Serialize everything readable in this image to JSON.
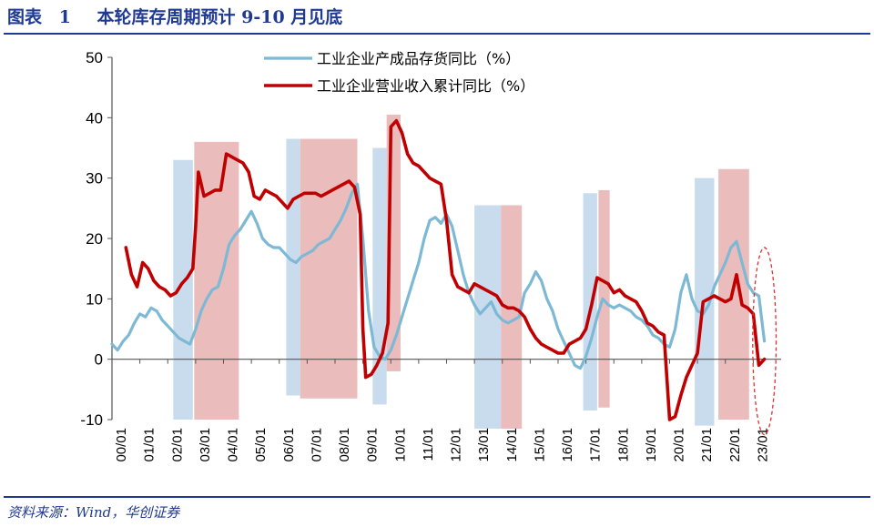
{
  "figure": {
    "label": "图表",
    "number": "1",
    "title": "本轮库存周期预计 9-10 月见底",
    "source": "资料来源：Wind，华创证券"
  },
  "chart_data": {
    "type": "line",
    "xlabel": "",
    "ylabel": "",
    "ylim": [
      -10,
      50
    ],
    "yticks": [
      -10,
      0,
      10,
      20,
      30,
      40,
      50
    ],
    "xlim": [
      2000.0,
      2024.0
    ],
    "xticks": [
      "00/01",
      "01/01",
      "02/01",
      "03/01",
      "04/01",
      "05/01",
      "06/01",
      "07/01",
      "08/01",
      "09/01",
      "10/01",
      "11/01",
      "12/01",
      "13/01",
      "14/01",
      "15/01",
      "16/01",
      "17/01",
      "18/01",
      "19/01",
      "20/01",
      "21/01",
      "22/01",
      "23/01"
    ],
    "colors": {
      "inventory": "#7db9d4",
      "revenue": "#c00000",
      "band_blue": "#c8dcee",
      "band_red": "#ebbcbc",
      "ellipse": "#e03030"
    },
    "series": [
      {
        "name": "工业企业产成品存货同比（%）",
        "color": "#7db9d4",
        "points": [
          [
            2000.0,
            2.5
          ],
          [
            2000.2,
            1.5
          ],
          [
            2000.4,
            3.0
          ],
          [
            2000.6,
            4.0
          ],
          [
            2000.8,
            6.0
          ],
          [
            2001.0,
            7.5
          ],
          [
            2001.2,
            7.0
          ],
          [
            2001.4,
            8.5
          ],
          [
            2001.6,
            8.0
          ],
          [
            2001.8,
            6.5
          ],
          [
            2002.0,
            5.5
          ],
          [
            2002.2,
            4.5
          ],
          [
            2002.4,
            3.5
          ],
          [
            2002.6,
            3.0
          ],
          [
            2002.8,
            2.5
          ],
          [
            2003.0,
            5.0
          ],
          [
            2003.2,
            8.0
          ],
          [
            2003.4,
            10.0
          ],
          [
            2003.6,
            11.5
          ],
          [
            2003.8,
            12.0
          ],
          [
            2004.0,
            15.0
          ],
          [
            2004.2,
            19.0
          ],
          [
            2004.4,
            20.5
          ],
          [
            2004.6,
            21.5
          ],
          [
            2004.8,
            23.0
          ],
          [
            2005.0,
            24.5
          ],
          [
            2005.2,
            22.5
          ],
          [
            2005.4,
            20.0
          ],
          [
            2005.6,
            19.0
          ],
          [
            2005.8,
            18.5
          ],
          [
            2006.0,
            18.5
          ],
          [
            2006.2,
            17.5
          ],
          [
            2006.4,
            16.5
          ],
          [
            2006.6,
            16.0
          ],
          [
            2006.8,
            17.0
          ],
          [
            2007.0,
            17.5
          ],
          [
            2007.2,
            18.0
          ],
          [
            2007.4,
            19.0
          ],
          [
            2007.6,
            19.5
          ],
          [
            2007.8,
            20.0
          ],
          [
            2008.0,
            21.5
          ],
          [
            2008.2,
            23.0
          ],
          [
            2008.4,
            25.0
          ],
          [
            2008.6,
            27.5
          ],
          [
            2008.8,
            29.0
          ],
          [
            2009.0,
            20.0
          ],
          [
            2009.2,
            8.0
          ],
          [
            2009.4,
            2.0
          ],
          [
            2009.6,
            0.5
          ],
          [
            2009.8,
            0.0
          ],
          [
            2010.0,
            1.5
          ],
          [
            2010.2,
            4.0
          ],
          [
            2010.4,
            7.0
          ],
          [
            2010.6,
            10.0
          ],
          [
            2010.8,
            13.0
          ],
          [
            2011.0,
            16.0
          ],
          [
            2011.2,
            20.0
          ],
          [
            2011.4,
            23.0
          ],
          [
            2011.6,
            23.5
          ],
          [
            2011.8,
            22.5
          ],
          [
            2012.0,
            24.0
          ],
          [
            2012.2,
            22.0
          ],
          [
            2012.4,
            18.0
          ],
          [
            2012.6,
            14.0
          ],
          [
            2012.8,
            11.0
          ],
          [
            2013.0,
            9.0
          ],
          [
            2013.2,
            7.5
          ],
          [
            2013.4,
            8.5
          ],
          [
            2013.6,
            9.5
          ],
          [
            2013.8,
            7.5
          ],
          [
            2014.0,
            6.5
          ],
          [
            2014.2,
            6.0
          ],
          [
            2014.4,
            6.5
          ],
          [
            2014.6,
            7.0
          ],
          [
            2014.8,
            11.0
          ],
          [
            2015.0,
            12.5
          ],
          [
            2015.2,
            14.5
          ],
          [
            2015.4,
            13.0
          ],
          [
            2015.6,
            10.0
          ],
          [
            2015.8,
            8.0
          ],
          [
            2016.0,
            5.0
          ],
          [
            2016.2,
            3.0
          ],
          [
            2016.4,
            1.0
          ],
          [
            2016.6,
            -1.0
          ],
          [
            2016.8,
            -1.5
          ],
          [
            2017.0,
            0.5
          ],
          [
            2017.2,
            3.5
          ],
          [
            2017.4,
            7.0
          ],
          [
            2017.6,
            10.0
          ],
          [
            2017.8,
            9.0
          ],
          [
            2018.0,
            8.5
          ],
          [
            2018.2,
            9.0
          ],
          [
            2018.4,
            8.5
          ],
          [
            2018.6,
            8.0
          ],
          [
            2018.8,
            7.0
          ],
          [
            2019.0,
            6.5
          ],
          [
            2019.2,
            5.5
          ],
          [
            2019.4,
            4.0
          ],
          [
            2019.6,
            3.5
          ],
          [
            2019.8,
            2.5
          ],
          [
            2020.0,
            2.0
          ],
          [
            2020.2,
            5.0
          ],
          [
            2020.4,
            11.0
          ],
          [
            2020.6,
            14.0
          ],
          [
            2020.8,
            10.0
          ],
          [
            2021.0,
            8.0
          ],
          [
            2021.2,
            7.5
          ],
          [
            2021.4,
            9.0
          ],
          [
            2021.6,
            12.0
          ],
          [
            2021.8,
            14.0
          ],
          [
            2022.0,
            16.0
          ],
          [
            2022.2,
            18.5
          ],
          [
            2022.4,
            19.5
          ],
          [
            2022.6,
            16.0
          ],
          [
            2022.8,
            12.5
          ],
          [
            2023.0,
            11.0
          ],
          [
            2023.2,
            10.5
          ],
          [
            2023.4,
            3.0
          ]
        ]
      },
      {
        "name": "工业企业营业收入累计同比（%）",
        "color": "#c00000",
        "points": [
          [
            2000.5,
            18.5
          ],
          [
            2000.7,
            14.0
          ],
          [
            2000.9,
            12.0
          ],
          [
            2001.1,
            16.0
          ],
          [
            2001.3,
            15.0
          ],
          [
            2001.5,
            13.0
          ],
          [
            2001.7,
            12.0
          ],
          [
            2001.9,
            11.5
          ],
          [
            2002.1,
            10.5
          ],
          [
            2002.3,
            11.0
          ],
          [
            2002.5,
            12.5
          ],
          [
            2002.7,
            13.5
          ],
          [
            2002.9,
            15.0
          ],
          [
            2003.0,
            22.0
          ],
          [
            2003.1,
            31.0
          ],
          [
            2003.3,
            27.0
          ],
          [
            2003.5,
            27.5
          ],
          [
            2003.7,
            28.0
          ],
          [
            2003.9,
            28.0
          ],
          [
            2004.1,
            34.0
          ],
          [
            2004.3,
            33.5
          ],
          [
            2004.5,
            33.0
          ],
          [
            2004.7,
            32.5
          ],
          [
            2004.9,
            31.0
          ],
          [
            2005.1,
            27.0
          ],
          [
            2005.3,
            26.5
          ],
          [
            2005.5,
            28.0
          ],
          [
            2005.7,
            27.5
          ],
          [
            2005.9,
            27.0
          ],
          [
            2006.1,
            26.0
          ],
          [
            2006.3,
            25.0
          ],
          [
            2006.5,
            26.5
          ],
          [
            2006.7,
            27.0
          ],
          [
            2006.9,
            27.5
          ],
          [
            2007.1,
            27.5
          ],
          [
            2007.3,
            27.5
          ],
          [
            2007.5,
            27.0
          ],
          [
            2007.7,
            27.5
          ],
          [
            2007.9,
            28.0
          ],
          [
            2008.1,
            28.5
          ],
          [
            2008.3,
            29.0
          ],
          [
            2008.5,
            29.5
          ],
          [
            2008.7,
            28.5
          ],
          [
            2008.9,
            24.0
          ],
          [
            2009.0,
            5.0
          ],
          [
            2009.1,
            -3.0
          ],
          [
            2009.3,
            -2.5
          ],
          [
            2009.5,
            -1.0
          ],
          [
            2009.7,
            1.0
          ],
          [
            2009.9,
            6.0
          ],
          [
            2010.0,
            38.5
          ],
          [
            2010.2,
            39.5
          ],
          [
            2010.4,
            37.5
          ],
          [
            2010.6,
            34.0
          ],
          [
            2010.8,
            32.5
          ],
          [
            2011.0,
            32.0
          ],
          [
            2011.2,
            31.0
          ],
          [
            2011.4,
            30.0
          ],
          [
            2011.6,
            29.5
          ],
          [
            2011.8,
            29.0
          ],
          [
            2012.0,
            23.0
          ],
          [
            2012.2,
            14.0
          ],
          [
            2012.4,
            12.0
          ],
          [
            2012.6,
            11.5
          ],
          [
            2012.8,
            11.0
          ],
          [
            2013.0,
            12.5
          ],
          [
            2013.2,
            12.0
          ],
          [
            2013.4,
            11.5
          ],
          [
            2013.6,
            11.0
          ],
          [
            2013.8,
            10.5
          ],
          [
            2014.0,
            9.0
          ],
          [
            2014.2,
            8.5
          ],
          [
            2014.4,
            8.5
          ],
          [
            2014.6,
            8.0
          ],
          [
            2014.8,
            7.0
          ],
          [
            2015.0,
            5.0
          ],
          [
            2015.2,
            3.5
          ],
          [
            2015.4,
            2.5
          ],
          [
            2015.6,
            2.0
          ],
          [
            2015.8,
            1.5
          ],
          [
            2016.0,
            1.0
          ],
          [
            2016.2,
            1.0
          ],
          [
            2016.4,
            2.5
          ],
          [
            2016.6,
            3.0
          ],
          [
            2016.8,
            3.5
          ],
          [
            2017.0,
            5.0
          ],
          [
            2017.2,
            9.0
          ],
          [
            2017.4,
            13.5
          ],
          [
            2017.6,
            13.0
          ],
          [
            2017.8,
            12.5
          ],
          [
            2018.0,
            11.0
          ],
          [
            2018.2,
            11.5
          ],
          [
            2018.4,
            10.5
          ],
          [
            2018.6,
            10.0
          ],
          [
            2018.8,
            9.5
          ],
          [
            2019.0,
            8.0
          ],
          [
            2019.2,
            6.0
          ],
          [
            2019.4,
            5.5
          ],
          [
            2019.6,
            4.5
          ],
          [
            2019.8,
            4.0
          ],
          [
            2020.0,
            -10.0
          ],
          [
            2020.2,
            -9.5
          ],
          [
            2020.4,
            -6.0
          ],
          [
            2020.6,
            -3.0
          ],
          [
            2020.8,
            -1.0
          ],
          [
            2021.0,
            1.0
          ],
          [
            2021.2,
            9.5
          ],
          [
            2021.4,
            10.0
          ],
          [
            2021.6,
            10.5
          ],
          [
            2021.8,
            10.0
          ],
          [
            2022.0,
            9.5
          ],
          [
            2022.2,
            10.0
          ],
          [
            2022.4,
            14.0
          ],
          [
            2022.6,
            9.0
          ],
          [
            2022.8,
            8.5
          ],
          [
            2023.0,
            7.5
          ],
          [
            2023.2,
            -1.0
          ],
          [
            2023.4,
            0.0
          ]
        ]
      }
    ],
    "bands": [
      {
        "series": "inventory",
        "x0": 2002.2,
        "x1": 2002.9,
        "y0": -10,
        "y1": 33
      },
      {
        "series": "revenue",
        "x0": 2002.95,
        "x1": 2004.55,
        "y0": -10,
        "y1": 36
      },
      {
        "series": "inventory",
        "x0": 2006.25,
        "x1": 2006.75,
        "y0": -6,
        "y1": 36.5
      },
      {
        "series": "revenue",
        "x0": 2006.75,
        "x1": 2008.8,
        "y0": -6.5,
        "y1": 36.5
      },
      {
        "series": "inventory",
        "x0": 2009.35,
        "x1": 2009.85,
        "y0": -7.5,
        "y1": 35
      },
      {
        "series": "revenue",
        "x0": 2009.85,
        "x1": 2010.35,
        "y0": -2,
        "y1": 40.5
      },
      {
        "series": "inventory",
        "x0": 2013.0,
        "x1": 2013.95,
        "y0": -11.5,
        "y1": 25.5
      },
      {
        "series": "revenue",
        "x0": 2013.95,
        "x1": 2014.7,
        "y0": -11.5,
        "y1": 25.5
      },
      {
        "series": "inventory",
        "x0": 2016.9,
        "x1": 2017.4,
        "y0": -8.5,
        "y1": 27.5
      },
      {
        "series": "revenue",
        "x0": 2017.45,
        "x1": 2017.85,
        "y0": -8,
        "y1": 28
      },
      {
        "series": "inventory",
        "x0": 2020.9,
        "x1": 2021.6,
        "y0": -11,
        "y1": 30
      },
      {
        "series": "revenue",
        "x0": 2021.75,
        "x1": 2022.85,
        "y0": -10,
        "y1": 31.5
      }
    ],
    "annotation": {
      "type": "ellipse",
      "cx": 2023.4,
      "cy": 3.0,
      "rx": 0.42,
      "ry": 15.5,
      "style": "dashed"
    },
    "legend": {
      "position": "top-center"
    }
  }
}
